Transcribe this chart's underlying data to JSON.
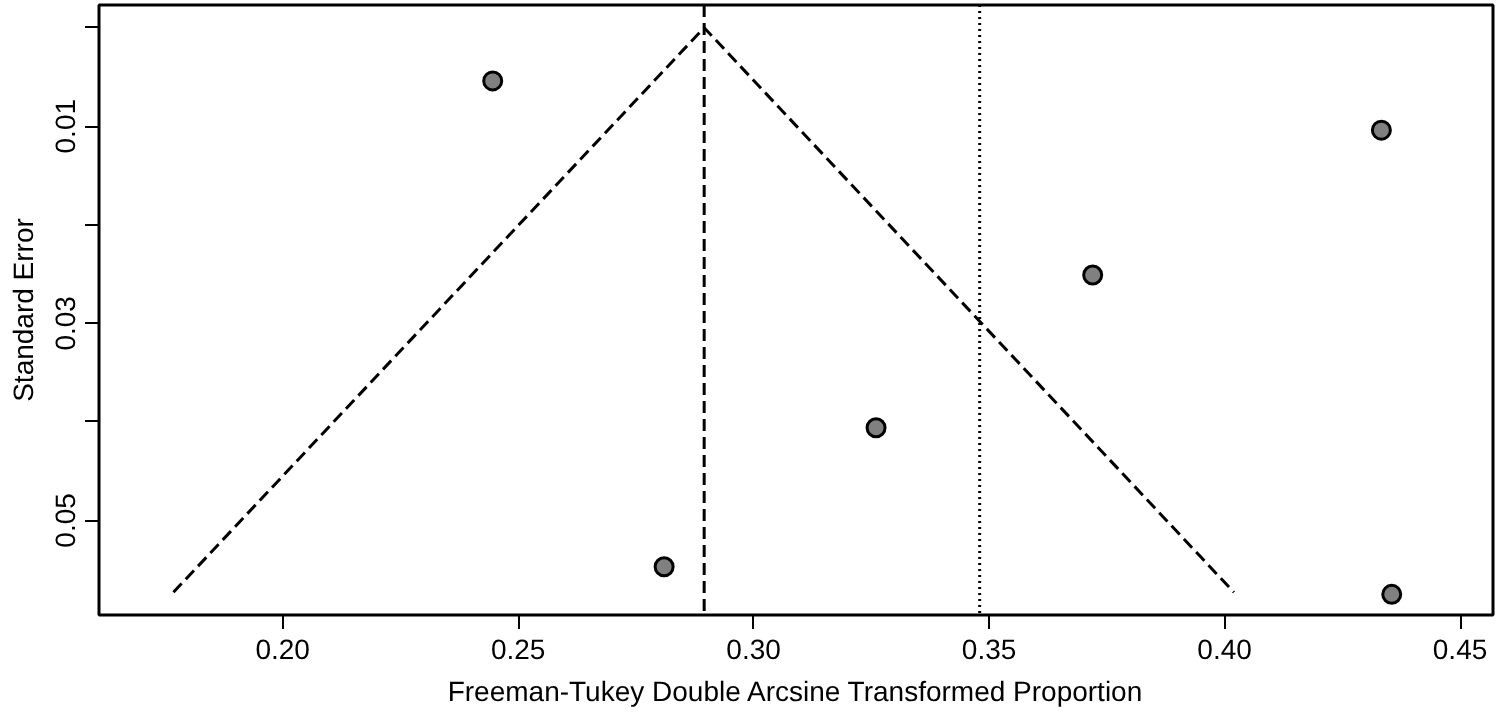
{
  "chart_data": {
    "type": "scatter",
    "xlabel": "Freeman-Tukey Double Arcsine Transformed Proportion",
    "ylabel": "Standard Error",
    "x": [
      0.2446,
      0.281,
      0.326,
      0.372,
      0.4333,
      0.4355
    ],
    "series": [
      {
        "color": "#808080",
        "values": [
          0.0054,
          0.0547,
          0.0406,
          0.0251,
          0.0104,
          0.0575
        ],
        "marker": "circle"
      },
      {
        "type": "line",
        "color": "#000000",
        "x": [
          0.1768,
          0.2895,
          0.402
        ],
        "values": [
          0.0573,
          0,
          0.0573
        ],
        "marker": "none",
        "line_style": "dashed"
      }
    ],
    "ref_lines": [
      {
        "axis": "x",
        "value": 0.2895,
        "color": "#000000",
        "line_style": "dashed"
      },
      {
        "axis": "x",
        "value": 0.348,
        "color": "#000000",
        "line_style": "dotted"
      }
    ],
    "xlim": [
      0.161,
      0.457
    ],
    "xticks": [
      {
        "value": 0.2,
        "label": "0.20"
      },
      0.25,
      {
        "value": 0.3,
        "label": "0.30"
      },
      0.35,
      {
        "value": 0.4,
        "label": "0.40"
      },
      0.45
    ],
    "ylim": [
      0.0596,
      -0.0023
    ],
    "yticks": [
      {
        "value": 0,
        "label": null
      },
      0.01,
      {
        "value": 0.02,
        "label": null
      },
      0.03,
      {
        "value": 0.04,
        "label": null
      },
      0.05
    ],
    "grid": false
  }
}
